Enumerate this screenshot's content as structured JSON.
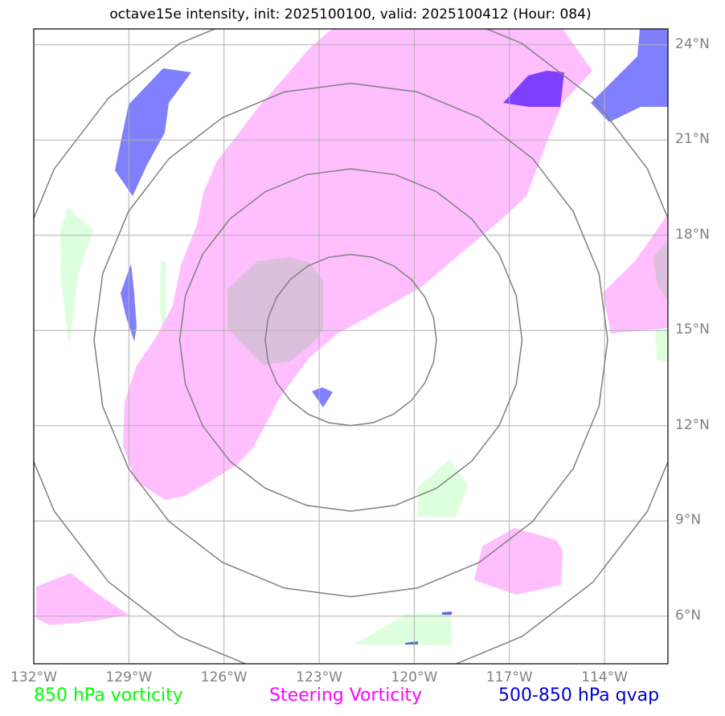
{
  "title": "octave15e intensity, init: 2025100100, valid: 2025100412 (Hour: 084)",
  "map": {
    "lon_range": [
      -132,
      -112
    ],
    "lat_range": [
      4.5,
      24.5
    ],
    "center": {
      "lon": -122,
      "lat": 14.7
    },
    "range_rings_deg": [
      2.7,
      5.4,
      8.1,
      10.8
    ],
    "gridlines": true
  },
  "lat_labels": [
    "24°N",
    "21°N",
    "18°N",
    "15°N",
    "12°N",
    "9°N",
    "6°N"
  ],
  "lon_labels": [
    "132°W",
    "129°W",
    "126°W",
    "123°W",
    "120°W",
    "117°W",
    "114°W"
  ],
  "legend": [
    {
      "label": "850 hPa vorticity",
      "color": "#00ff00"
    },
    {
      "label": "Steering Vorticity",
      "color": "#ff00ff"
    },
    {
      "label": "500-850 hPa qvap",
      "color": "#0000cc"
    }
  ],
  "colors": {
    "vort850": "#ddffdd",
    "steering": "#ffbfff",
    "qvap": "#8080ff",
    "qvap_strong": "#7f3fff",
    "overlap": "#dcbfdc",
    "rings": "#808080",
    "grid": "#b0b0b0"
  }
}
